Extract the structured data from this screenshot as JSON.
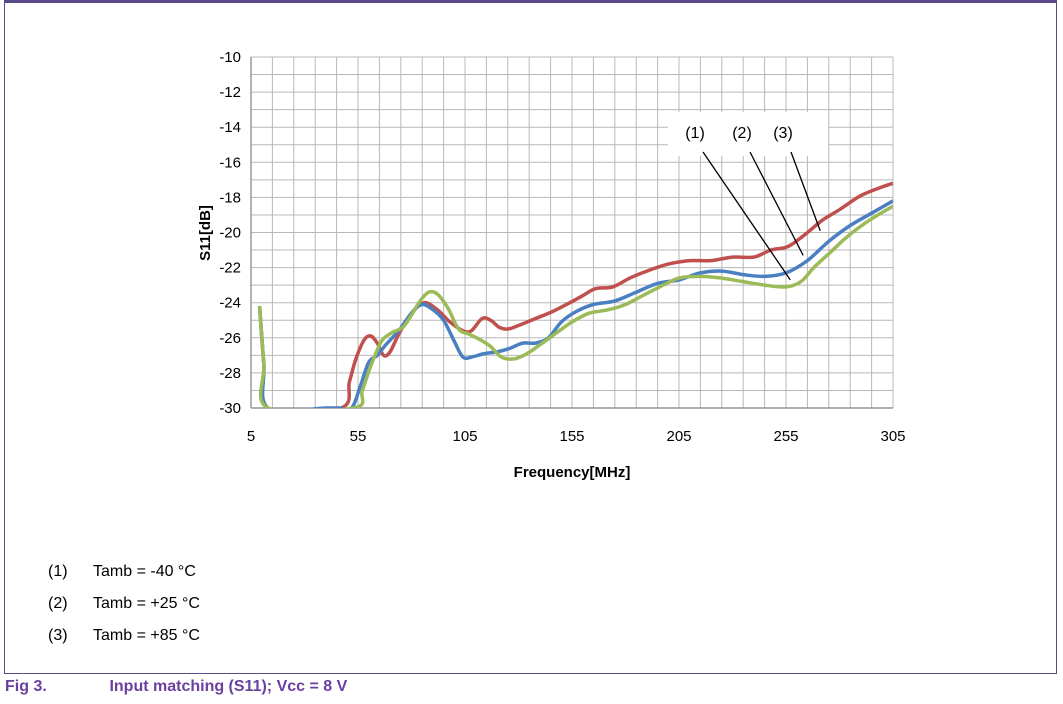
{
  "chart_data": {
    "type": "line",
    "xlabel": "Frequency[MHz]",
    "ylabel": "S11[dB]",
    "xlim": [
      5,
      305
    ],
    "ylim": [
      -30,
      -10
    ],
    "x_ticks": [
      "5",
      "55",
      "105",
      "155",
      "205",
      "255",
      "305"
    ],
    "y_ticks": [
      "-10",
      "-12",
      "-14",
      "-16",
      "-18",
      "-20",
      "-22",
      "-24",
      "-26",
      "-28",
      "-30"
    ],
    "grid": true,
    "callouts": [
      "(1)",
      "(2)",
      "(3)"
    ],
    "series": [
      {
        "label": "(1)",
        "color": "#4a7fc1",
        "points": [
          [
            9,
            -24.2
          ],
          [
            11,
            -27.5
          ],
          [
            13,
            -30
          ],
          [
            40,
            -30
          ],
          [
            43,
            -30.1
          ],
          [
            46,
            -30
          ],
          [
            52,
            -30
          ],
          [
            56,
            -28.8
          ],
          [
            60,
            -27.4
          ],
          [
            64,
            -27
          ],
          [
            68,
            -26.4
          ],
          [
            74,
            -25.6
          ],
          [
            80,
            -24.6
          ],
          [
            85,
            -24.1
          ],
          [
            90,
            -24.4
          ],
          [
            95,
            -25
          ],
          [
            100,
            -26.2
          ],
          [
            104,
            -27.1
          ],
          [
            108,
            -27.1
          ],
          [
            114,
            -26.9
          ],
          [
            120,
            -26.8
          ],
          [
            126,
            -26.6
          ],
          [
            132,
            -26.3
          ],
          [
            138,
            -26.3
          ],
          [
            144,
            -26
          ],
          [
            150,
            -25.1
          ],
          [
            157,
            -24.5
          ],
          [
            165,
            -24.1
          ],
          [
            175,
            -23.9
          ],
          [
            185,
            -23.4
          ],
          [
            195,
            -22.9
          ],
          [
            205,
            -22.7
          ],
          [
            215,
            -22.3
          ],
          [
            225,
            -22.2
          ],
          [
            235,
            -22.4
          ],
          [
            245,
            -22.5
          ],
          [
            255,
            -22.3
          ],
          [
            265,
            -21.6
          ],
          [
            275,
            -20.5
          ],
          [
            285,
            -19.6
          ],
          [
            295,
            -18.9
          ],
          [
            305,
            -18.2
          ]
        ]
      },
      {
        "label": "(2)",
        "color": "#c0504d",
        "points": [
          [
            9,
            -24.2
          ],
          [
            11,
            -27.5
          ],
          [
            13,
            -30
          ],
          [
            47,
            -30
          ],
          [
            51,
            -28.5
          ],
          [
            54,
            -27.2
          ],
          [
            58,
            -26.1
          ],
          [
            61,
            -25.9
          ],
          [
            64,
            -26.3
          ],
          [
            67,
            -27
          ],
          [
            70,
            -26.8
          ],
          [
            74,
            -25.8
          ],
          [
            80,
            -24.6
          ],
          [
            86,
            -24.0
          ],
          [
            92,
            -24.4
          ],
          [
            98,
            -25.1
          ],
          [
            104,
            -25.6
          ],
          [
            108,
            -25.6
          ],
          [
            113,
            -24.9
          ],
          [
            117,
            -25.0
          ],
          [
            121,
            -25.4
          ],
          [
            125,
            -25.5
          ],
          [
            130,
            -25.3
          ],
          [
            138,
            -24.9
          ],
          [
            146,
            -24.5
          ],
          [
            154,
            -24.0
          ],
          [
            160,
            -23.6
          ],
          [
            166,
            -23.2
          ],
          [
            174,
            -23.1
          ],
          [
            182,
            -22.6
          ],
          [
            190,
            -22.2
          ],
          [
            200,
            -21.8
          ],
          [
            210,
            -21.6
          ],
          [
            220,
            -21.6
          ],
          [
            230,
            -21.4
          ],
          [
            240,
            -21.4
          ],
          [
            248,
            -21.0
          ],
          [
            256,
            -20.8
          ],
          [
            264,
            -20.1
          ],
          [
            272,
            -19.3
          ],
          [
            280,
            -18.7
          ],
          [
            290,
            -17.9
          ],
          [
            300,
            -17.4
          ],
          [
            305,
            -17.2
          ]
        ]
      },
      {
        "label": "(3)",
        "color": "#9bbb59",
        "points": [
          [
            9,
            -24.2
          ],
          [
            11,
            -27.5
          ],
          [
            13,
            -30
          ],
          [
            53,
            -30
          ],
          [
            57,
            -29.0
          ],
          [
            61,
            -27.6
          ],
          [
            66,
            -26.2
          ],
          [
            71,
            -25.7
          ],
          [
            76,
            -25.4
          ],
          [
            80,
            -24.7
          ],
          [
            84,
            -23.9
          ],
          [
            88,
            -23.4
          ],
          [
            92,
            -23.5
          ],
          [
            97,
            -24.3
          ],
          [
            102,
            -25.5
          ],
          [
            107,
            -25.8
          ],
          [
            112,
            -26.1
          ],
          [
            117,
            -26.5
          ],
          [
            122,
            -27.1
          ],
          [
            128,
            -27.2
          ],
          [
            134,
            -26.9
          ],
          [
            140,
            -26.4
          ],
          [
            148,
            -25.7
          ],
          [
            155,
            -25.1
          ],
          [
            163,
            -24.6
          ],
          [
            172,
            -24.4
          ],
          [
            180,
            -24.1
          ],
          [
            188,
            -23.6
          ],
          [
            196,
            -23.1
          ],
          [
            205,
            -22.6
          ],
          [
            215,
            -22.5
          ],
          [
            225,
            -22.6
          ],
          [
            235,
            -22.8
          ],
          [
            245,
            -23.0
          ],
          [
            255,
            -23.1
          ],
          [
            262,
            -22.8
          ],
          [
            268,
            -22.0
          ],
          [
            276,
            -21.1
          ],
          [
            284,
            -20.2
          ],
          [
            294,
            -19.3
          ],
          [
            305,
            -18.5
          ]
        ]
      }
    ]
  },
  "notes": [
    {
      "num": "(1)",
      "text": "Tamb = -40 °C"
    },
    {
      "num": "(2)",
      "text": "Tamb = +25 °C"
    },
    {
      "num": "(3)",
      "text": "Tamb = +85 °C"
    }
  ],
  "caption": {
    "fig": "Fig 3.",
    "title": "Input matching (S11); Vcc = 8 V"
  }
}
